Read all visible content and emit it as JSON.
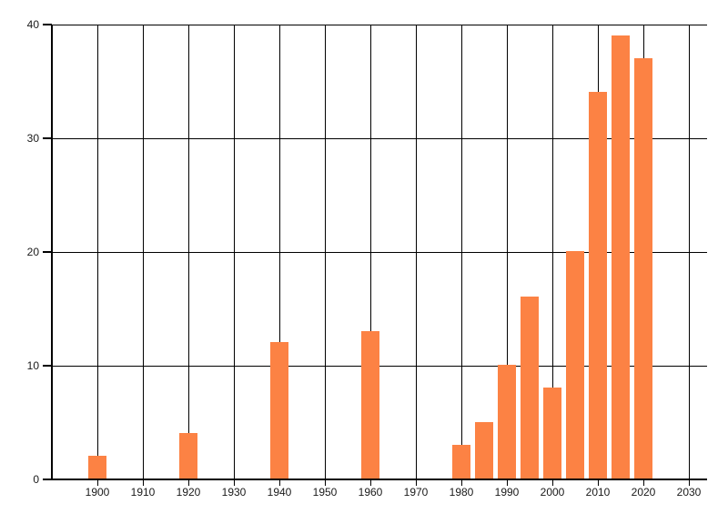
{
  "chart_data": {
    "type": "bar",
    "title": "",
    "xlabel": "",
    "ylabel": "",
    "x": [
      1900,
      1920,
      1940,
      1960,
      1980,
      1985,
      1990,
      1995,
      2000,
      2005,
      2010,
      2015,
      2020
    ],
    "values": [
      2,
      4,
      12,
      13,
      3,
      5,
      10,
      16,
      8,
      20,
      34,
      39,
      37
    ],
    "xlim": [
      1890,
      2034
    ],
    "ylim": [
      0,
      40
    ],
    "x_ticks": [
      1900,
      1910,
      1920,
      1930,
      1940,
      1950,
      1960,
      1970,
      1980,
      1990,
      2000,
      2010,
      2020,
      2030
    ],
    "x_tick_labels": [
      "1900",
      "1910",
      "1920",
      "1930",
      "1940",
      "1950",
      "1960",
      "1970",
      "1980",
      "1990",
      "2000",
      "2010",
      "2020",
      "2030"
    ],
    "y_ticks": [
      0,
      10,
      20,
      30,
      40
    ],
    "y_tick_labels": [
      "0",
      "10",
      "20",
      "30",
      "40"
    ],
    "grid": true,
    "legend": false,
    "colors": {
      "bar": "#FC8244",
      "grid": "#000000",
      "axis": "#000000",
      "label": "#1A1A1A",
      "background": "#FFFFFF"
    }
  }
}
